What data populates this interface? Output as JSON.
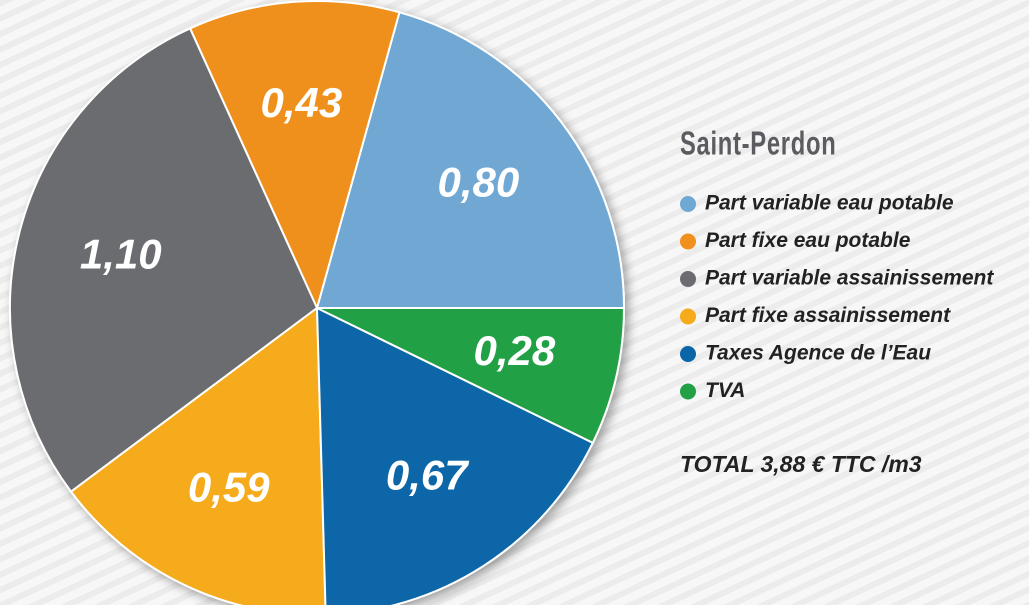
{
  "chart_data": {
    "type": "pie",
    "title": "Saint-Perdon",
    "categories": [
      "Part variable eau potable",
      "Part fixe eau potable",
      "Part variable assainissement",
      "Part fixe assainissement",
      "Taxes Agence de l’Eau",
      "TVA"
    ],
    "values": [
      0.8,
      0.43,
      1.1,
      0.59,
      0.67,
      0.28
    ],
    "value_labels": [
      "0,80",
      "0,43",
      "1,10",
      "0,59",
      "0,67",
      "0,28"
    ],
    "colors": [
      "#6fa8d3",
      "#f0901e",
      "#6b6c70",
      "#f6ab1b",
      "#0b66a7",
      "#22a045"
    ],
    "annotation": "TOTAL 3,88 € TTC /m3",
    "legend": "right"
  }
}
